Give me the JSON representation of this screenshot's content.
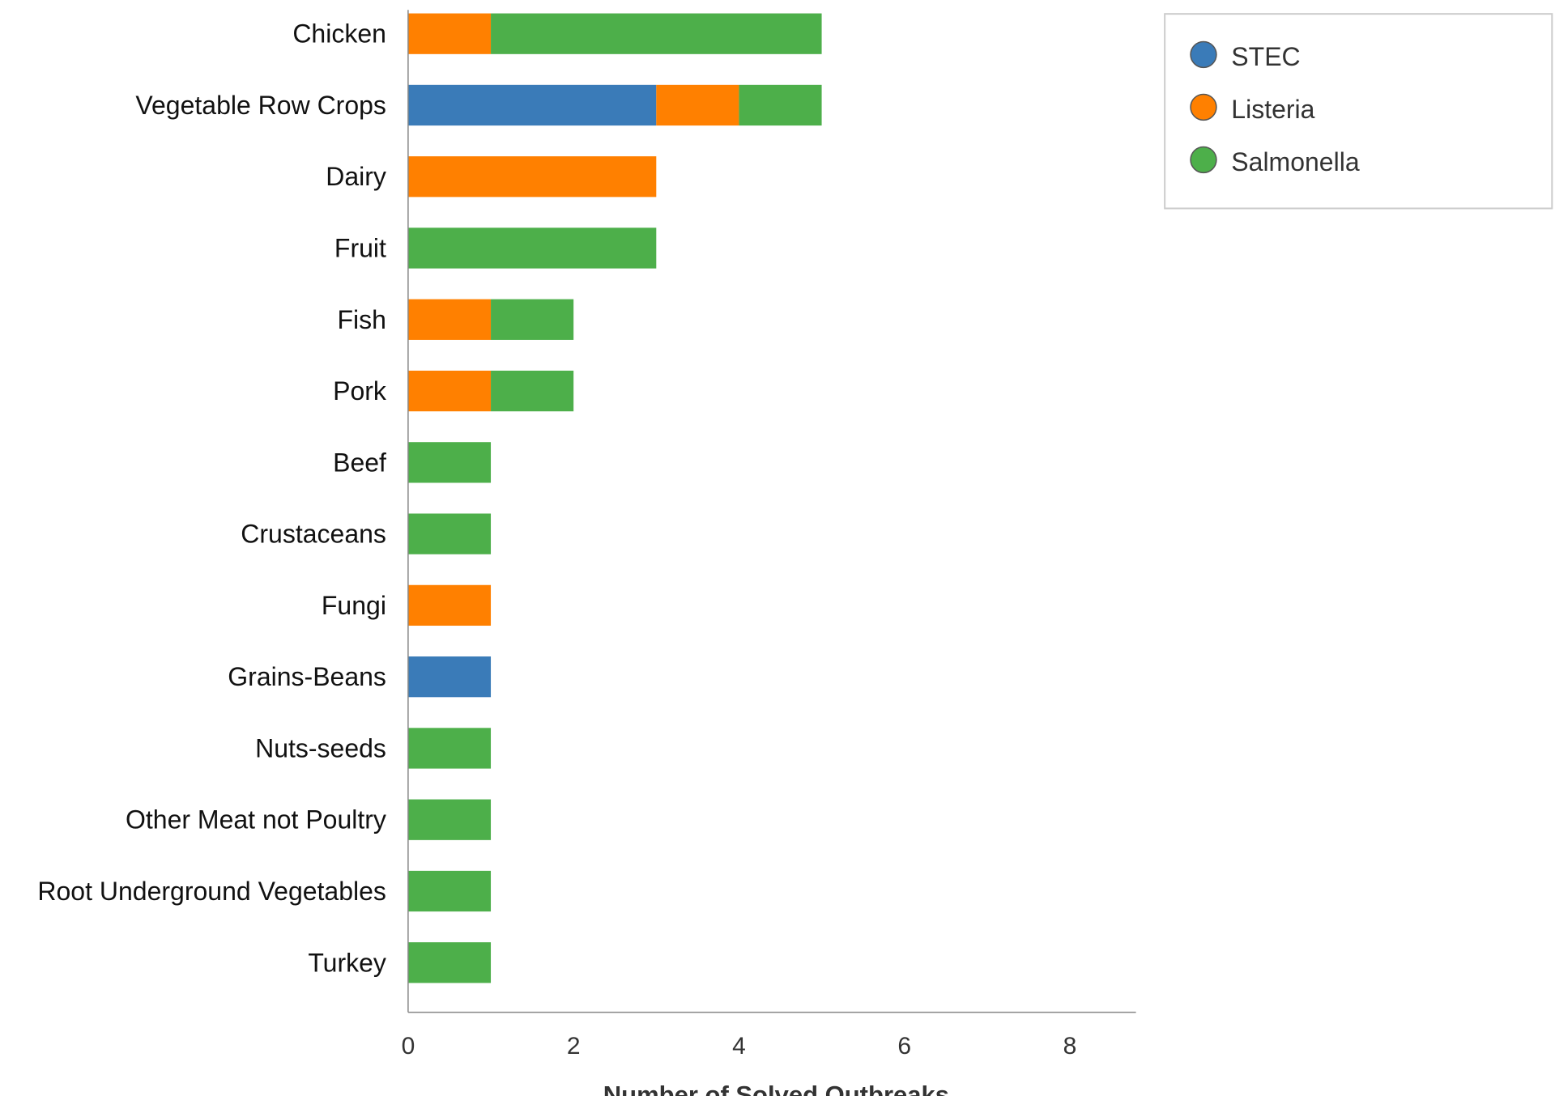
{
  "chart_data": {
    "type": "bar",
    "orientation": "horizontal",
    "stacked": true,
    "categories": [
      "Chicken",
      "Vegetable Row Crops",
      "Dairy",
      "Fruit",
      "Fish",
      "Pork",
      "Beef",
      "Crustaceans",
      "Fungi",
      "Grains-Beans",
      "Nuts-seeds",
      "Other Meat not Poultry",
      "Root Underground Vegetables",
      "Turkey"
    ],
    "series": [
      {
        "name": "STEC",
        "color": "#3a7bb8",
        "values": [
          0,
          3,
          0,
          0,
          0,
          0,
          0,
          0,
          0,
          1,
          0,
          0,
          0,
          0
        ]
      },
      {
        "name": "Listeria",
        "color": "#ff8000",
        "values": [
          1,
          1,
          3,
          0,
          1,
          1,
          0,
          0,
          1,
          0,
          0,
          0,
          0,
          0
        ]
      },
      {
        "name": "Salmonella",
        "color": "#4daf4a",
        "values": [
          4,
          1,
          0,
          3,
          1,
          1,
          1,
          1,
          0,
          0,
          1,
          1,
          1,
          1
        ]
      }
    ],
    "xlabel": "Number of Solved Outbreaks",
    "ylabel": "",
    "title": "",
    "xlim": [
      0,
      8.8
    ],
    "xticks": [
      0,
      2,
      4,
      6,
      8
    ],
    "grid": false,
    "legend_position": "top-right"
  }
}
